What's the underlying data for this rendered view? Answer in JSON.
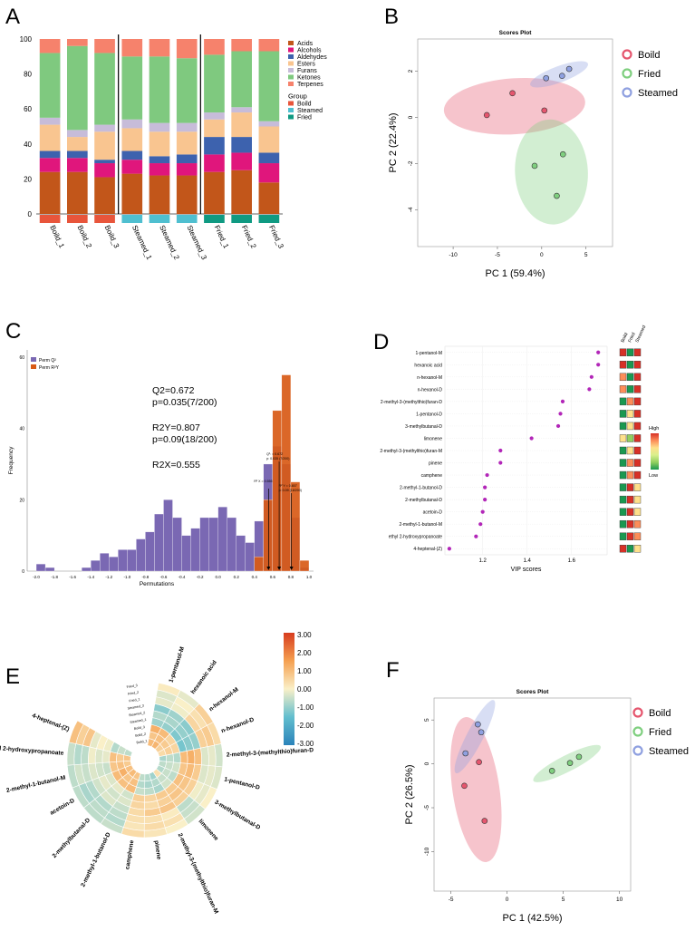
{
  "panels": {
    "A": {
      "letter": "A"
    },
    "B": {
      "letter": "B"
    },
    "C": {
      "letter": "C"
    },
    "D": {
      "letter": "D"
    },
    "E": {
      "letter": "E"
    },
    "F": {
      "letter": "F"
    }
  },
  "chart_data": [
    {
      "id": "A",
      "type": "bar",
      "stacked": true,
      "categories": [
        "Boild_1",
        "Boild_2",
        "Boild_3",
        "Steamed_1",
        "Steamed_2",
        "Steamed_3",
        "Fried_1",
        "Fried_2",
        "Fried_3"
      ],
      "groups": [
        "Boild",
        "Boild",
        "Boild",
        "Steamed",
        "Steamed",
        "Steamed",
        "Fried",
        "Fried",
        "Fried"
      ],
      "series": [
        {
          "name": "Acids",
          "color": "#c2561a",
          "values": [
            24,
            24,
            21,
            23,
            22,
            22,
            24,
            25,
            18
          ]
        },
        {
          "name": "Alcohols",
          "color": "#e0167c",
          "values": [
            8,
            8,
            8,
            8,
            7,
            7,
            10,
            10,
            11
          ]
        },
        {
          "name": "Aldehydes",
          "color": "#3d62ae",
          "values": [
            4,
            4,
            2,
            5,
            4,
            5,
            10,
            9,
            6
          ]
        },
        {
          "name": "Esters",
          "color": "#f9c590",
          "values": [
            15,
            8,
            16,
            13,
            14,
            13,
            10,
            14,
            15
          ]
        },
        {
          "name": "Furans",
          "color": "#c7bcd9",
          "values": [
            4,
            4,
            4,
            5,
            5,
            5,
            4,
            3,
            3
          ]
        },
        {
          "name": "Ketones",
          "color": "#7fc97f",
          "values": [
            37,
            48,
            41,
            36,
            38,
            37,
            33,
            32,
            40
          ]
        },
        {
          "name": "Terpenes",
          "color": "#f6826c",
          "values": [
            8,
            4,
            8,
            10,
            10,
            11,
            9,
            7,
            7
          ]
        }
      ],
      "legend_group_title": "Group",
      "legend_groups": [
        {
          "name": "Boild",
          "color": "#e8553b"
        },
        {
          "name": "Steamed",
          "color": "#4fbfd0"
        },
        {
          "name": "Fried",
          "color": "#0f9a82"
        }
      ],
      "ylim": [
        0,
        100
      ],
      "yticks": [
        "0",
        "20",
        "40",
        "60",
        "80",
        "100"
      ]
    },
    {
      "id": "B",
      "type": "scatter",
      "title": "Scores Plot",
      "xlabel": "PC 1 (59.4%)",
      "ylabel": "PC 2 (22.4%)",
      "xlim": [
        -14,
        8
      ],
      "ylim": [
        -5.6,
        3.4
      ],
      "xticks": [
        -10,
        -5,
        0,
        5
      ],
      "yticks": [
        2,
        0,
        -2,
        -4
      ],
      "series": [
        {
          "name": "Boild",
          "color": "#e5566e",
          "points": [
            [
              -6.2,
              0.1
            ],
            [
              -3.3,
              1.05
            ],
            [
              0.3,
              0.3
            ]
          ]
        },
        {
          "name": "Fried",
          "color": "#7fcf7f",
          "points": [
            [
              -0.8,
              -2.1
            ],
            [
              2.4,
              -1.6
            ],
            [
              1.7,
              -3.4
            ]
          ]
        },
        {
          "name": "Steamed",
          "color": "#8fa0e0",
          "points": [
            [
              0.5,
              1.7
            ],
            [
              2.3,
              1.8
            ],
            [
              3.1,
              2.1
            ]
          ]
        }
      ]
    },
    {
      "id": "C",
      "type": "bar",
      "subtype": "histogram",
      "xlabel": "Permutations",
      "ylabel": "Frequency",
      "xlim": [
        -2.1,
        1.05
      ],
      "ylim": [
        0,
        62
      ],
      "xticks": [
        "-2.0",
        "-1.8",
        "-1.6",
        "-1.4",
        "-1.2",
        "-1.0",
        "-0.8",
        "-0.6",
        "-0.4",
        "-0.2",
        "0.0",
        "0.2",
        "0.4",
        "0.6",
        "0.8",
        "1.0"
      ],
      "yticks": [
        "0",
        "20",
        "40",
        "60"
      ],
      "legend": [
        "Perm Q²",
        "Perm R²Y"
      ],
      "series": [
        {
          "name": "Perm Q²",
          "color": "#7a68b3",
          "bins": [
            [
              -1.95,
              2
            ],
            [
              -1.85,
              1
            ],
            [
              -1.45,
              1
            ],
            [
              -1.35,
              3
            ],
            [
              -1.25,
              5
            ],
            [
              -1.15,
              4
            ],
            [
              -1.05,
              6
            ],
            [
              -0.95,
              6
            ],
            [
              -0.85,
              9
            ],
            [
              -0.75,
              11
            ],
            [
              -0.65,
              16
            ],
            [
              -0.55,
              20
            ],
            [
              -0.45,
              15
            ],
            [
              -0.35,
              10
            ],
            [
              -0.25,
              12
            ],
            [
              -0.15,
              15
            ],
            [
              -0.05,
              15
            ],
            [
              0.05,
              18
            ],
            [
              0.15,
              15
            ],
            [
              0.25,
              10
            ],
            [
              0.35,
              8
            ],
            [
              0.45,
              14
            ],
            [
              0.55,
              30
            ],
            [
              0.65,
              35
            ],
            [
              0.75,
              30
            ],
            [
              0.85,
              15
            ],
            [
              0.95,
              1
            ]
          ]
        },
        {
          "name": "Perm R²Y",
          "color": "#d85a16",
          "bins": [
            [
              0.45,
              4
            ],
            [
              0.55,
              20
            ],
            [
              0.65,
              45
            ],
            [
              0.75,
              55
            ],
            [
              0.85,
              25
            ],
            [
              0.95,
              3
            ]
          ]
        }
      ],
      "annotations": {
        "q2": "Q2=0.672",
        "q2_p": "p=0.035(7/200)",
        "r2y": "R2Y=0.807",
        "r2y_p": "p=0.09(18/200)",
        "r2x": "R2X=0.555",
        "small_q2": "Q²: = 0.672",
        "small_q2_p": "p: 0.035 (7/200)",
        "small_r2y": "R² Y = 0.807",
        "small_r2y_p": "p: 0.09 (18/200)",
        "small_r2x": "R² X = 0.555"
      }
    },
    {
      "id": "D",
      "type": "scatter",
      "subtype": "vip",
      "xlabel": "VIP scores",
      "xlim": [
        1.03,
        1.76
      ],
      "xticks": [
        1.2,
        1.4,
        1.6
      ],
      "labels": [
        "1-pentanol-M",
        "hexanoic acid",
        "n-hexanol-M",
        "n-hexanol-D",
        "2-methyl-3-(methylthio)furan-D",
        "1-pentanol-D",
        "3-methylbutanal-D",
        "limonene",
        "2-methyl-3-(methylthio)furan-M",
        "pinene",
        "camphene",
        "2-methyl-1-butanol-D",
        "2-methylbutanal-D",
        "acetoin-D",
        "2-methyl-1-butanol-M",
        "ethyl 2-hydroxypropanoate",
        "4-heptenal-(Z)"
      ],
      "values": [
        1.72,
        1.72,
        1.69,
        1.68,
        1.56,
        1.55,
        1.54,
        1.42,
        1.28,
        1.28,
        1.22,
        1.21,
        1.21,
        1.2,
        1.19,
        1.17,
        1.05
      ],
      "heat_columns": [
        "Boild",
        "Fried",
        "Steamed"
      ],
      "heat_values": [
        [
          1,
          -1,
          1
        ],
        [
          1,
          -1,
          1
        ],
        [
          0.5,
          -1,
          1
        ],
        [
          0.5,
          -1,
          1
        ],
        [
          -1,
          0.4,
          1
        ],
        [
          -1,
          0.3,
          1
        ],
        [
          -1,
          0.3,
          1
        ],
        [
          0,
          -0.5,
          1
        ],
        [
          -1,
          0,
          1
        ],
        [
          -1,
          0.5,
          1
        ],
        [
          -1,
          0.5,
          1
        ],
        [
          -1,
          1,
          0
        ],
        [
          -1,
          1,
          0
        ],
        [
          -1,
          1,
          0.3
        ],
        [
          -1,
          1,
          0.5
        ],
        [
          -1,
          1,
          0.4
        ],
        [
          1,
          -1,
          0
        ]
      ],
      "heat_legend": {
        "high": "High",
        "low": "Low"
      }
    },
    {
      "id": "E",
      "type": "heatmap",
      "subtype": "circular",
      "labels": [
        "1-pentanol-M",
        "hexanoic acid",
        "n-hexanol-M",
        "n-hexanol-D",
        "2-methyl-3-(methylthio)furan-D",
        "1-pentanol-D",
        "3-methylbutanal-D",
        "limonene",
        "2-methyl-3-(methylthio)furan-M",
        "pinene",
        "camphene",
        "2-methyl-1-butanol-D",
        "2-methylbutanal-D",
        "acetoin-D",
        "2-methyl-1-butanol-M",
        "ethyl 2-hydroxypropanoate",
        "4-heptenal-(Z)"
      ],
      "ring_labels": [
        "Fried_3",
        "Fried_2",
        "Fried_1",
        "Steamed_3",
        "Steamed_2",
        "Steamed_1",
        "Boild_3",
        "Boild_2",
        "Boild_1"
      ],
      "colorbar_ticks": [
        "3.00",
        "2.00",
        "1.00",
        "0.00",
        "-1.00",
        "-2.00",
        "-3.00"
      ],
      "range": [
        -3,
        3
      ],
      "values": [
        [
          1,
          0.8,
          1.2,
          -0.9,
          -0.7,
          -1.1,
          -0.2,
          -0.3,
          0.1
        ],
        [
          1.1,
          0.9,
          1.0,
          -1.0,
          -0.8,
          -0.9,
          -0.1,
          0.0,
          -0.2
        ],
        [
          0.6,
          0.7,
          0.5,
          -1.2,
          -1.0,
          -1.1,
          0.5,
          0.3,
          0.6
        ],
        [
          0.4,
          0.6,
          0.5,
          -1.3,
          -1.1,
          -1.0,
          0.6,
          0.7,
          0.4
        ],
        [
          -0.8,
          -0.6,
          -0.7,
          1.0,
          1.2,
          0.9,
          -0.3,
          -0.2,
          -0.4
        ],
        [
          -0.6,
          -0.5,
          -0.4,
          0.8,
          1.0,
          0.7,
          -0.3,
          -0.2,
          -0.3
        ],
        [
          -0.7,
          -0.5,
          -0.6,
          0.9,
          0.8,
          0.6,
          -0.1,
          -0.2,
          0.0
        ],
        [
          0.3,
          -0.5,
          -0.4,
          0.7,
          0.8,
          0.6,
          -0.6,
          -0.5,
          -0.4
        ],
        [
          -0.9,
          -0.7,
          -0.8,
          0.7,
          0.6,
          0.8,
          0.1,
          0.3,
          0.0
        ],
        [
          -0.7,
          -0.8,
          -0.6,
          0.5,
          0.4,
          0.7,
          0.3,
          0.4,
          0.2
        ],
        [
          -0.6,
          -0.7,
          -0.5,
          0.6,
          0.5,
          0.4,
          0.3,
          0.2,
          0.4
        ],
        [
          0.8,
          0.9,
          1.0,
          -0.4,
          -0.3,
          -0.5,
          -0.6,
          -0.7,
          -0.5
        ],
        [
          1.0,
          0.8,
          0.9,
          -0.2,
          -0.4,
          -0.3,
          -0.7,
          -0.6,
          -0.6
        ],
        [
          0.9,
          1.2,
          1.0,
          -0.3,
          -0.2,
          -0.4,
          -0.7,
          -0.8,
          -0.6
        ],
        [
          0.7,
          0.9,
          0.8,
          -0.5,
          -0.4,
          -0.3,
          -0.5,
          -0.4,
          -0.6
        ],
        [
          0.8,
          0.7,
          0.9,
          -0.2,
          -0.3,
          -0.1,
          -0.6,
          -0.7,
          -0.5
        ],
        [
          -0.6,
          -0.5,
          -0.7,
          -0.1,
          0.0,
          -0.2,
          0.8,
          0.6,
          0.9
        ]
      ]
    },
    {
      "id": "F",
      "type": "scatter",
      "title": "Scores Plot",
      "xlabel": "PC 1 (42.5%)",
      "ylabel": "PC 2 (26.5%)",
      "xlim": [
        -6.5,
        11
      ],
      "ylim": [
        -14.5,
        7.5
      ],
      "xticks": [
        -5,
        0,
        5,
        10
      ],
      "yticks": [
        5,
        0,
        -5,
        -10
      ],
      "series": [
        {
          "name": "Boild",
          "color": "#e5566e",
          "points": [
            [
              -3.8,
              -2.5
            ],
            [
              -2.5,
              0.2
            ],
            [
              -2.0,
              -6.5
            ]
          ]
        },
        {
          "name": "Fried",
          "color": "#7fcf7f",
          "points": [
            [
              4.0,
              -0.8
            ],
            [
              5.6,
              0.1
            ],
            [
              6.4,
              0.8
            ]
          ]
        },
        {
          "name": "Steamed",
          "color": "#8fa0e0",
          "points": [
            [
              -3.7,
              1.2
            ],
            [
              -2.6,
              4.5
            ],
            [
              -2.3,
              3.6
            ]
          ]
        }
      ]
    }
  ]
}
